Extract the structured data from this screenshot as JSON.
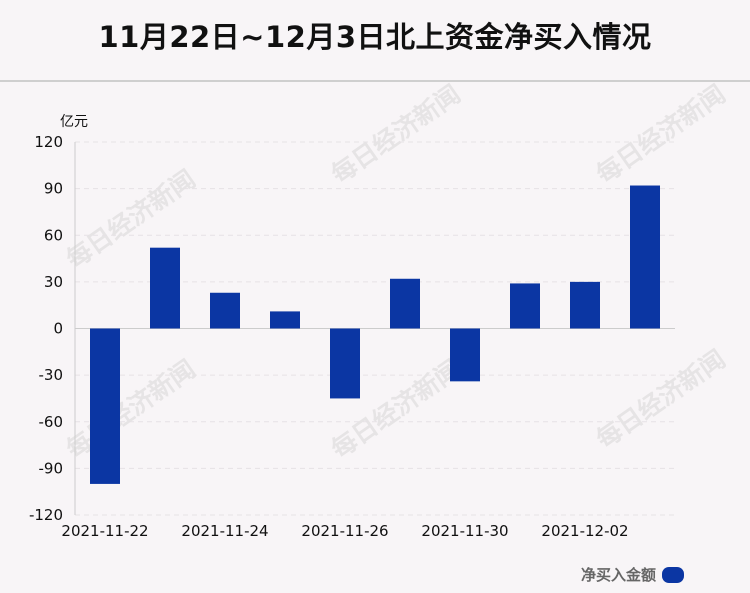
{
  "title": "11月22日~12月3日北上资金净买入情况",
  "watermark": "每日经济新闻",
  "chart_data": {
    "type": "bar",
    "unit_label": "亿元",
    "categories": [
      "2021-11-22",
      "2021-11-23",
      "2021-11-24",
      "2021-11-25",
      "2021-11-26",
      "2021-11-29",
      "2021-11-30",
      "2021-12-01",
      "2021-12-02",
      "2021-12-03"
    ],
    "x_tick_labels": [
      "2021-11-22",
      "",
      "2021-11-24",
      "",
      "2021-11-26",
      "",
      "2021-11-30",
      "",
      "2021-12-02",
      ""
    ],
    "series": [
      {
        "name": "净买入金额",
        "color": "#0b36a3",
        "values": [
          -100,
          52,
          23,
          11,
          -45,
          32,
          -34,
          29,
          30,
          92
        ]
      }
    ],
    "ylim": [
      -120,
      120
    ],
    "yticks": [
      120,
      90,
      60,
      30,
      0,
      -30,
      -60,
      -90,
      -120
    ],
    "grid": true,
    "legend_position": "bottom-right"
  }
}
